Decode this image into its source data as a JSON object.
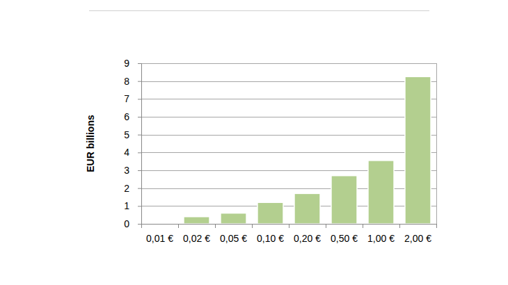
{
  "chart_data": {
    "type": "bar",
    "y_label": "EUR billions",
    "categories": [
      "0,01 €",
      "0,02 €",
      "0,05 €",
      "0,10 €",
      "0,20 €",
      "0,50 €",
      "1,00 €",
      "2,00 €"
    ],
    "values": [
      0,
      0.4,
      0.6,
      1.2,
      1.7,
      2.7,
      3.55,
      8.25
    ],
    "color": "#b3cf8f",
    "ylim": [
      0,
      9
    ],
    "yticks": [
      0,
      1,
      2,
      3,
      4,
      5,
      6,
      7,
      8,
      9
    ],
    "grid": true
  }
}
